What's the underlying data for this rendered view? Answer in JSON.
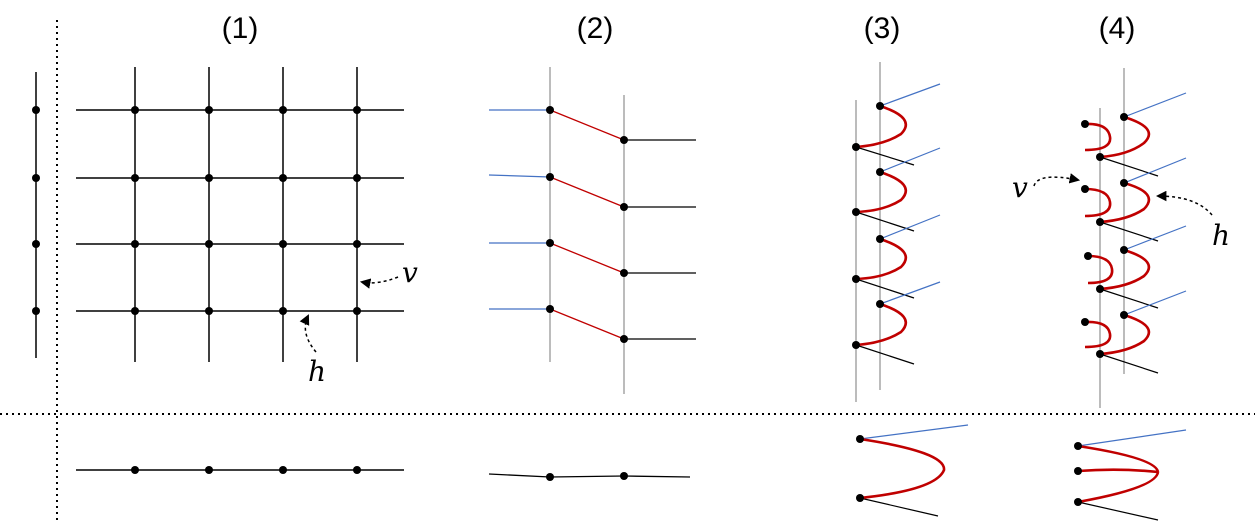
{
  "panels": [
    {
      "id": "1",
      "title": "(1)"
    },
    {
      "id": "2",
      "title": "(2)"
    },
    {
      "id": "3",
      "title": "(3)"
    },
    {
      "id": "4",
      "title": "(4)"
    }
  ],
  "labels": {
    "p1_v": "v",
    "p1_h": "h",
    "p4_v": "v",
    "p4_h": "h"
  },
  "colors": {
    "line": "#000000",
    "gray": "#a6a6a6",
    "blue": "#4472c4",
    "red": "#c00000"
  }
}
